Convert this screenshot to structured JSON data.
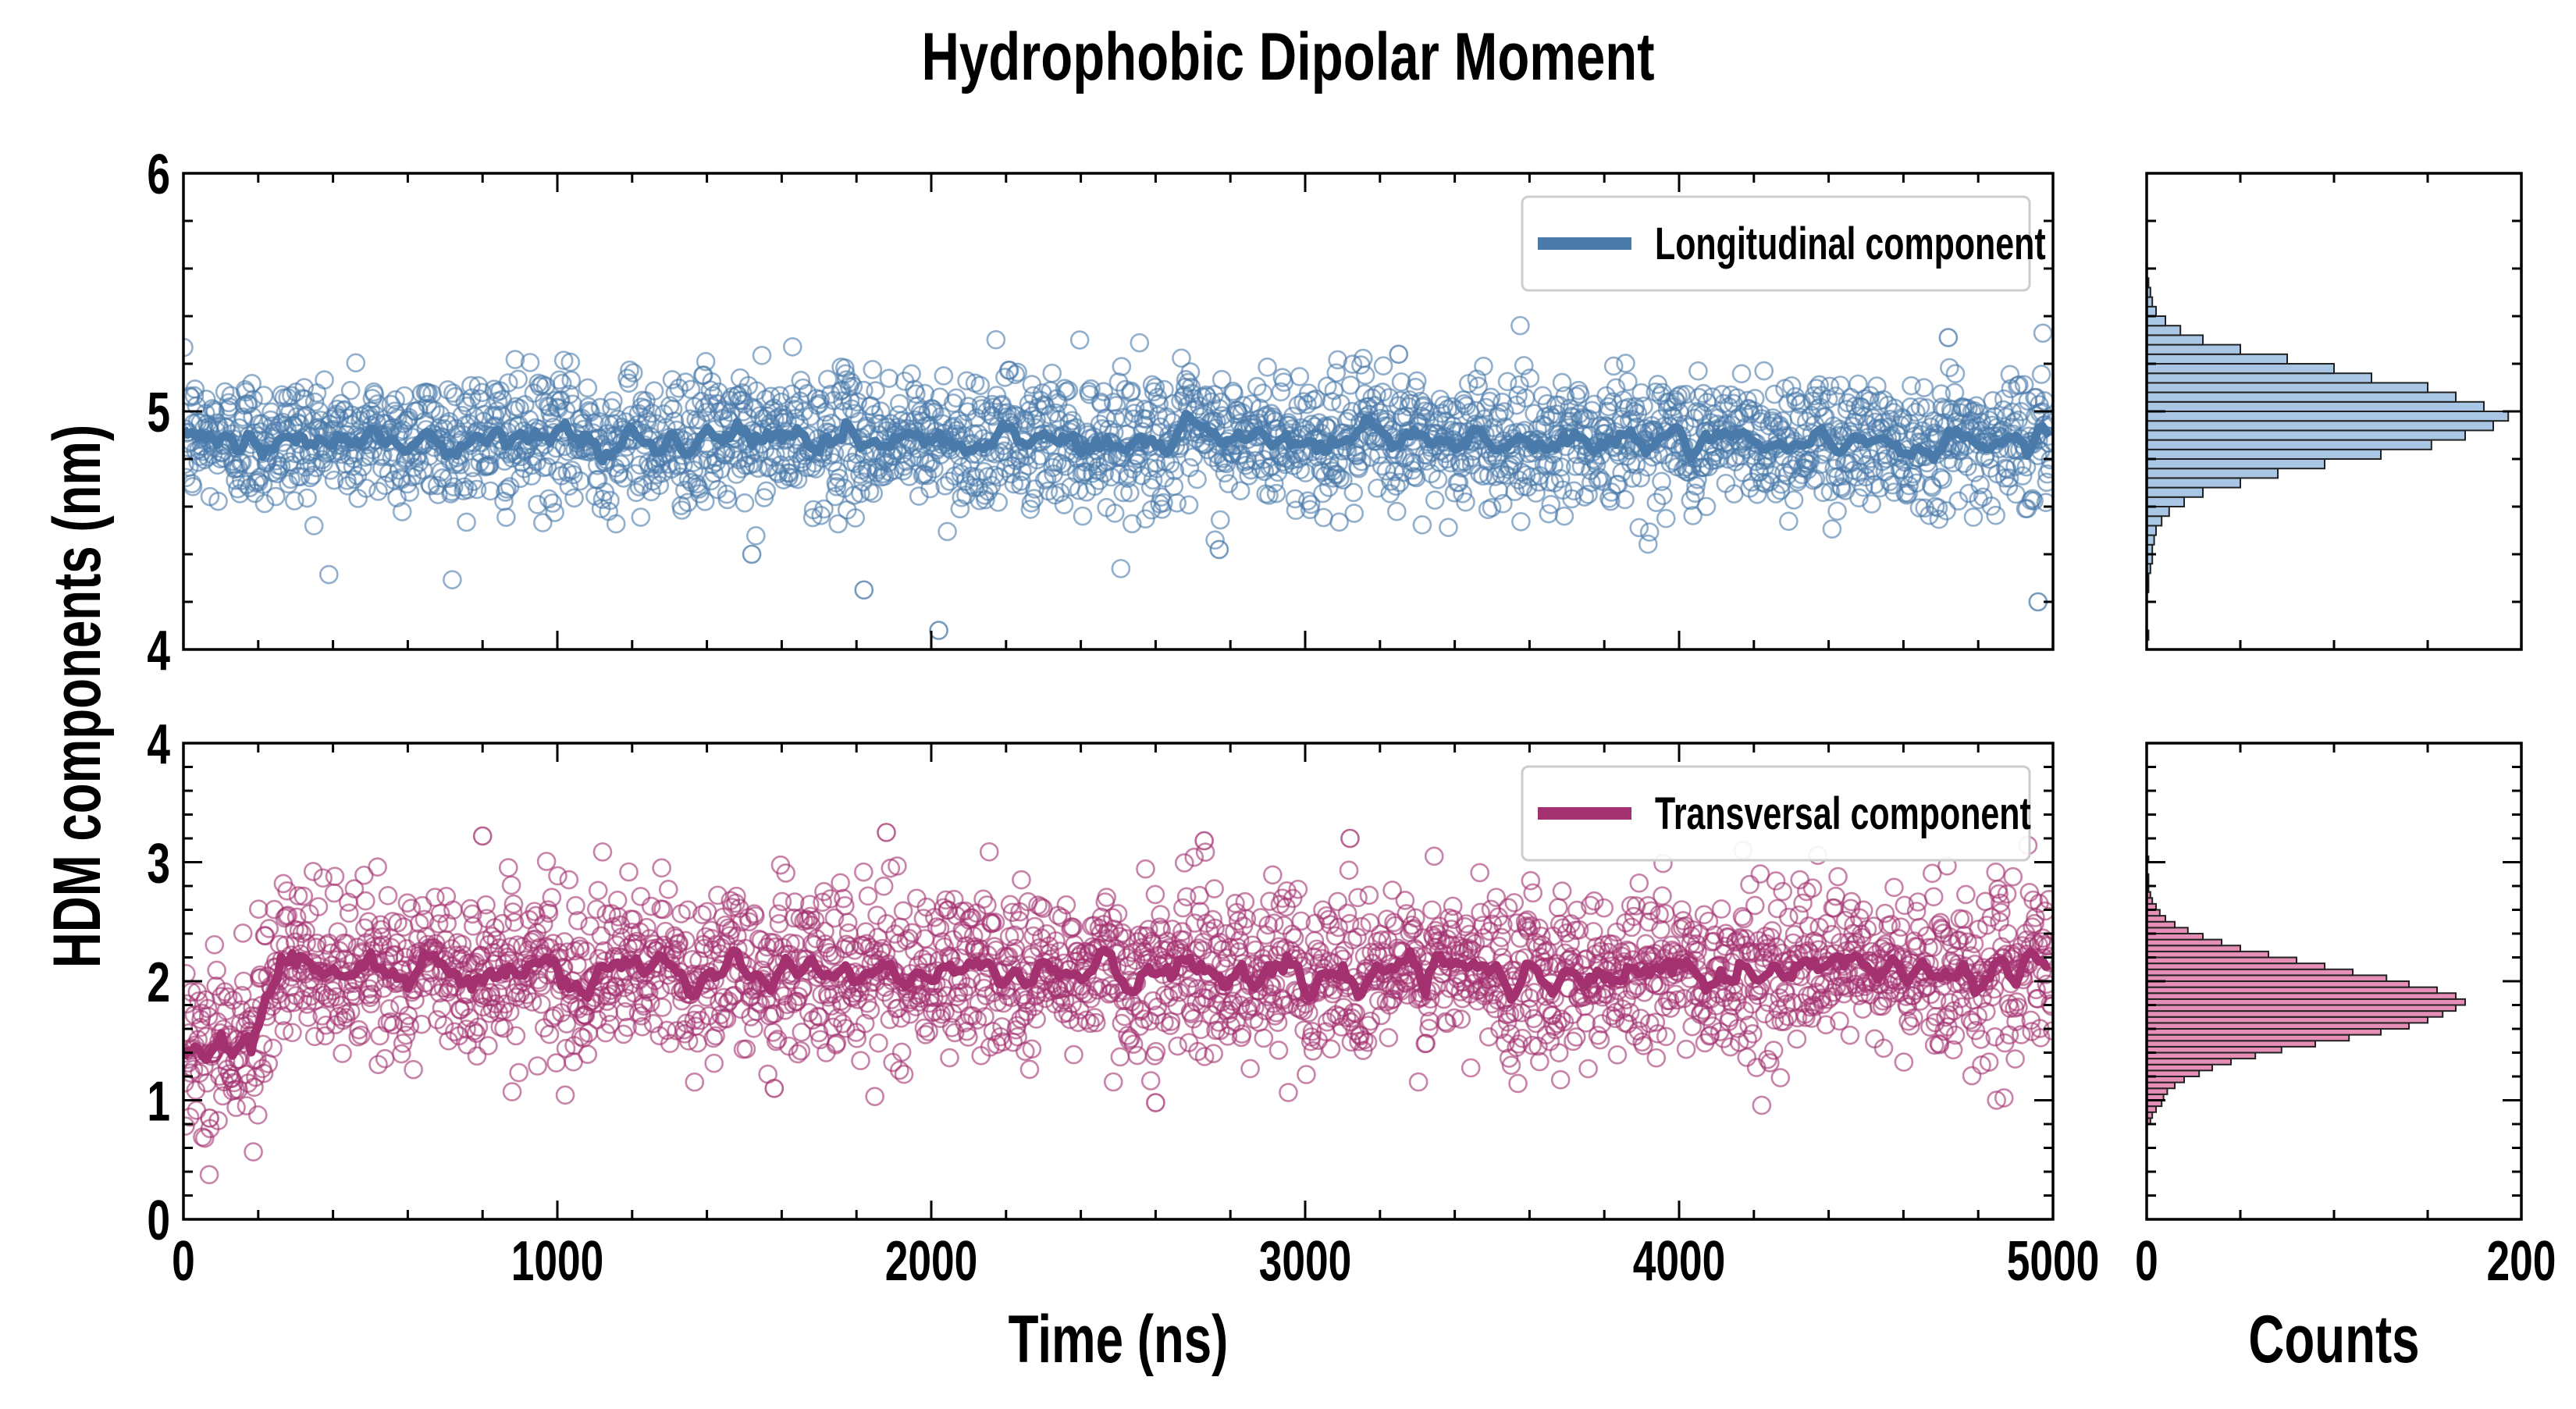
{
  "title": "Hydrophobic Dipolar Moment",
  "shared_ylabel": "HDM components (nm)",
  "colors": {
    "longitudinal": "#4a7aaa",
    "longitudinal_hist": "#a9c7e4",
    "transversal": "#a3306f",
    "transversal_hist": "#e58fb6"
  },
  "chart_data": [
    {
      "type": "scatter",
      "panel": "top-time-series",
      "xlabel": "",
      "ylabel": "",
      "xlim": [
        0,
        5000
      ],
      "ylim": [
        4,
        6
      ],
      "yticks": [
        "4",
        "5",
        "6"
      ],
      "legend": {
        "entries": [
          "Longitudinal component"
        ],
        "placement": "top-right"
      },
      "series": [
        {
          "name": "Longitudinal component",
          "kind": "scatter-with-running-average",
          "mean": 4.88,
          "spread": 0.14,
          "n_points": 2500,
          "outliers": [
            {
              "x": 1820,
              "y": 4.25
            },
            {
              "x": 2020,
              "y": 4.08
            },
            {
              "x": 4960,
              "y": 4.2
            },
            {
              "x": 4720,
              "y": 5.31
            },
            {
              "x": 3250,
              "y": 5.24
            },
            {
              "x": 1520,
              "y": 4.4
            },
            {
              "x": 2770,
              "y": 4.42
            }
          ]
        }
      ]
    },
    {
      "type": "scatter",
      "panel": "bottom-time-series",
      "xlabel": "Time (ns)",
      "ylabel": "",
      "xlim": [
        0,
        5000
      ],
      "ylim": [
        0,
        4
      ],
      "xticks": [
        "0",
        "1000",
        "2000",
        "3000",
        "4000",
        "5000"
      ],
      "yticks": [
        "0",
        "1",
        "2",
        "3",
        "4"
      ],
      "legend": {
        "entries": [
          "Transversal component"
        ],
        "placement": "top-right"
      },
      "series": [
        {
          "name": "Transversal component",
          "kind": "scatter-with-running-average",
          "initial_segment": {
            "x_end": 200,
            "mean": 1.5
          },
          "mean": 2.08,
          "spread": 0.35,
          "n_points": 2500,
          "outliers": [
            {
              "x": 800,
              "y": 3.22
            },
            {
              "x": 1880,
              "y": 3.25
            },
            {
              "x": 2730,
              "y": 3.18
            },
            {
              "x": 3120,
              "y": 3.2
            },
            {
              "x": 1580,
              "y": 1.1
            },
            {
              "x": 2600,
              "y": 0.98
            },
            {
              "x": 70,
              "y": 0.85
            }
          ]
        }
      ]
    },
    {
      "type": "bar",
      "panel": "top-histogram",
      "orientation": "horizontal",
      "xlabel": "",
      "xlim": [
        0,
        200
      ],
      "ylim": [
        4,
        6
      ],
      "bin_width": 0.04,
      "bins_start": 4.04,
      "counts": [
        1,
        0,
        0,
        0,
        0,
        1,
        1,
        2,
        3,
        3,
        4,
        5,
        8,
        12,
        20,
        30,
        50,
        70,
        95,
        125,
        152,
        170,
        185,
        193,
        180,
        165,
        150,
        120,
        100,
        75,
        50,
        30,
        18,
        10,
        5,
        3,
        2,
        1
      ]
    },
    {
      "type": "bar",
      "panel": "bottom-histogram",
      "orientation": "horizontal",
      "xlabel": "Counts",
      "xlim": [
        0,
        200
      ],
      "ylim": [
        0,
        4
      ],
      "xticks": [
        "0",
        "200"
      ],
      "bin_width": 0.05,
      "bins_start": 0.8,
      "counts": [
        2,
        3,
        5,
        8,
        9,
        11,
        15,
        20,
        28,
        35,
        45,
        58,
        72,
        90,
        108,
        125,
        140,
        150,
        158,
        165,
        170,
        165,
        155,
        140,
        128,
        110,
        95,
        80,
        65,
        50,
        40,
        30,
        22,
        15,
        10,
        7,
        5,
        3,
        2,
        1,
        1,
        1,
        0,
        0,
        1
      ]
    }
  ]
}
